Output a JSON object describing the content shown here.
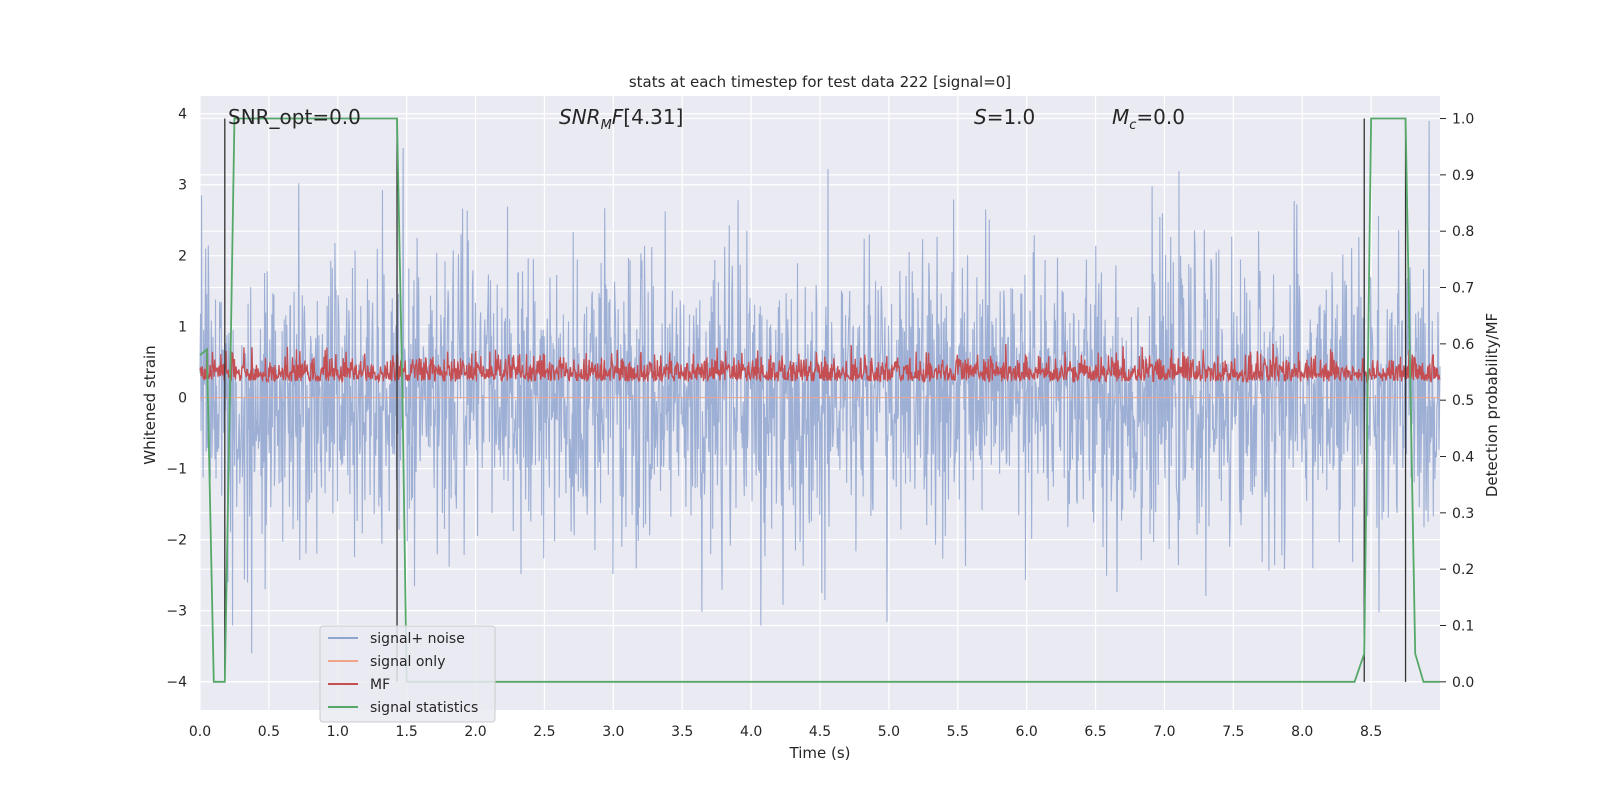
{
  "chart_data": {
    "type": "line",
    "title": "stats at each timestep for test data 222 [signal=0]",
    "xlabel": "Time (s)",
    "ylabel_left": "Whitened strain",
    "ylabel_right": "Detection probability/MF",
    "xlim": [
      0.0,
      9.0
    ],
    "ylim_left": [
      -4.4,
      4.25
    ],
    "ylim_right": [
      -0.05,
      1.04
    ],
    "grid": true,
    "legend_position": "lower-left",
    "x_ticks": [
      "0.0",
      "0.5",
      "1.0",
      "1.5",
      "2.0",
      "2.5",
      "3.0",
      "3.5",
      "4.0",
      "4.5",
      "5.0",
      "5.5",
      "6.0",
      "6.5",
      "7.0",
      "7.5",
      "8.0",
      "8.5"
    ],
    "y_left_ticks": [
      "−4",
      "−3",
      "−2",
      "−1",
      "0",
      "1",
      "2",
      "3",
      "4"
    ],
    "y_right_ticks": [
      "0.0",
      "0.1",
      "0.2",
      "0.3",
      "0.4",
      "0.5",
      "0.6",
      "0.7",
      "0.8",
      "0.9",
      "1.0"
    ],
    "annotations": {
      "snr_opt": "SNR_opt=0.0",
      "snr_mf": "[4.31]",
      "s": "=1.0",
      "mc": "=0.0"
    },
    "series": [
      {
        "name": "signal+ noise",
        "color": "#8fa5cf",
        "axis": "left",
        "description_value": "noise amplitude ~ 1.0 sigma, extremes 3.9 / -3.6"
      },
      {
        "name": "signal only",
        "color": "#f0a58a",
        "axis": "left",
        "values_constant": 0.0
      },
      {
        "name": "MF",
        "color": "#c44e52",
        "axis": "right",
        "range": [
          0.5,
          0.6
        ]
      },
      {
        "name": "signal statistics",
        "color": "#55a868",
        "axis": "right",
        "x": [
          0.0,
          0.05,
          0.1,
          0.12,
          0.18,
          0.22,
          0.25,
          1.43,
          1.47,
          1.5,
          8.38,
          8.45,
          8.5,
          8.75,
          8.82,
          8.88,
          9.0
        ],
        "y": [
          0.58,
          0.59,
          0.0,
          0.0,
          0.0,
          0.55,
          1.0,
          1.0,
          0.5,
          0.0,
          0.0,
          0.05,
          1.0,
          1.0,
          0.05,
          0.0,
          0.0
        ]
      }
    ],
    "vlines": [
      0.18,
      1.43,
      8.45,
      8.75
    ]
  },
  "legend": {
    "items": [
      {
        "label": "signal+ noise",
        "color": "#8fa5cf"
      },
      {
        "label": "signal only",
        "color": "#f0a58a"
      },
      {
        "label": "MF",
        "color": "#c44e52"
      },
      {
        "label": "signal statistics",
        "color": "#55a868"
      }
    ]
  },
  "colors": {
    "plot_bg": "#eaeaf2",
    "grid": "#ffffff",
    "vline": "#333333"
  }
}
